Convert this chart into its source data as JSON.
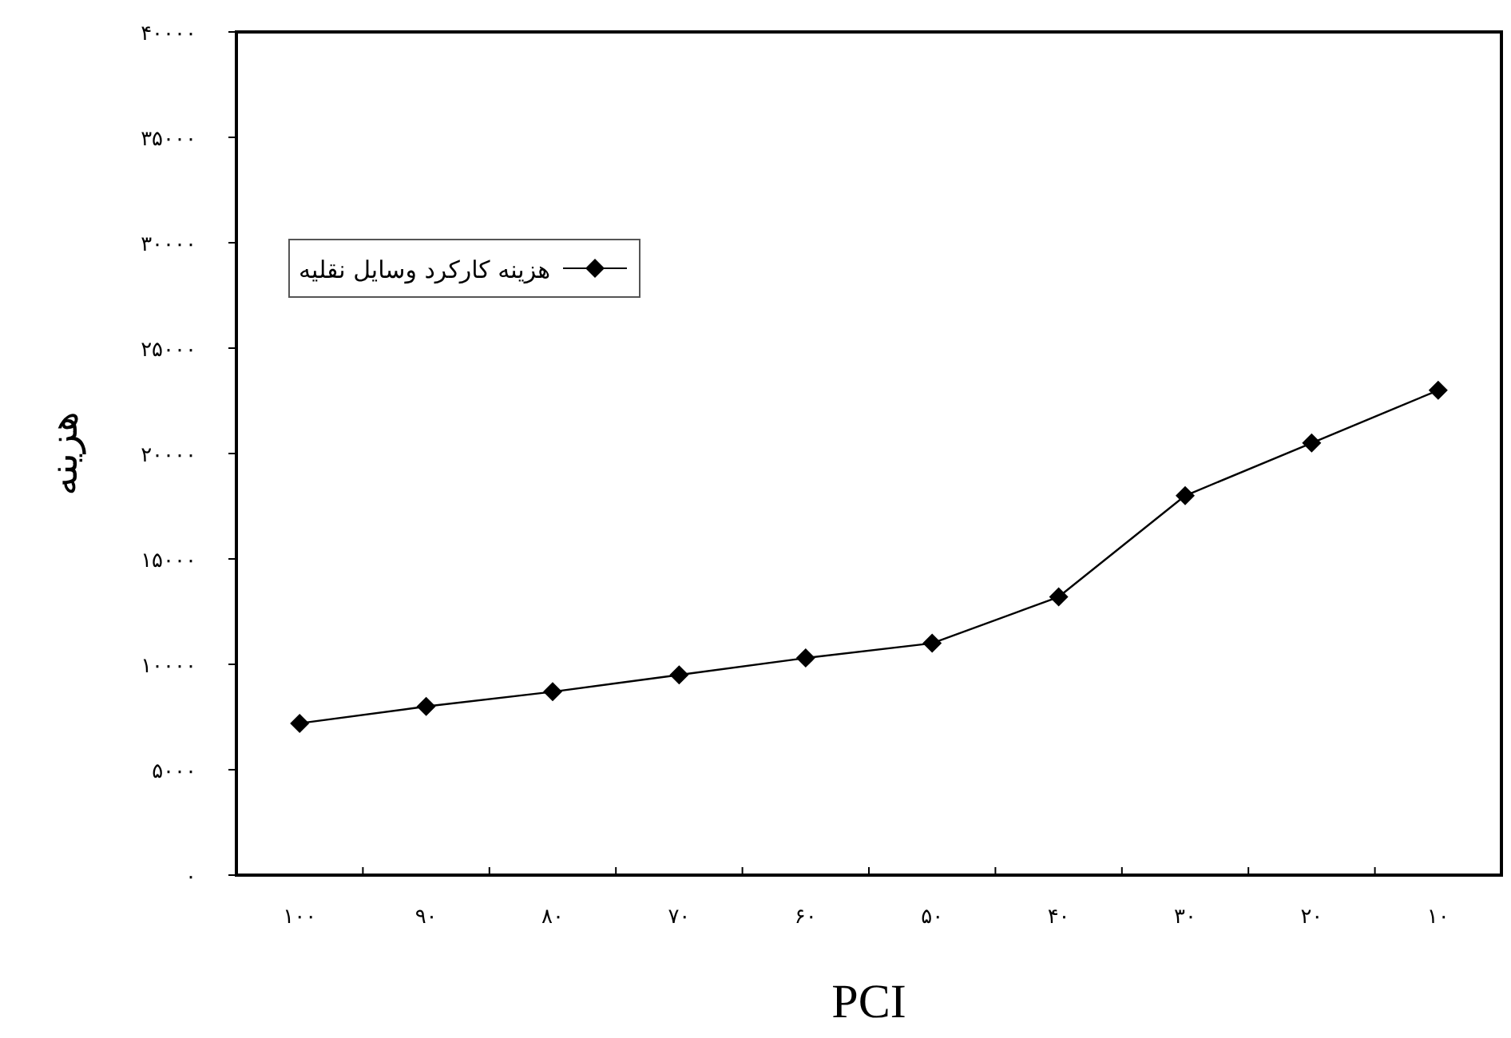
{
  "chart_data": {
    "type": "line",
    "xlabel": "PCI",
    "ylabel": "هزینه",
    "categories": [
      "۱۰۰",
      "۹۰",
      "۸۰",
      "۷۰",
      "۶۰",
      "۵۰",
      "۴۰",
      "۳۰",
      "۲۰",
      "۱۰"
    ],
    "series": [
      {
        "name": "هزینه کارکرد وسایل نقلیه",
        "color": "#000000",
        "values": [
          7200,
          8000,
          8700,
          9500,
          10300,
          11000,
          13200,
          18000,
          20500,
          23000
        ]
      }
    ],
    "ylim": [
      0,
      40000
    ],
    "yticks": [
      {
        "value": 0,
        "label": "۰"
      },
      {
        "value": 5000,
        "label": "۵۰۰۰"
      },
      {
        "value": 10000,
        "label": "۱۰۰۰۰"
      },
      {
        "value": 15000,
        "label": "۱۵۰۰۰"
      },
      {
        "value": 20000,
        "label": "۲۰۰۰۰"
      },
      {
        "value": 25000,
        "label": "۲۵۰۰۰"
      },
      {
        "value": 30000,
        "label": "۳۰۰۰۰"
      },
      {
        "value": 35000,
        "label": "۳۵۰۰۰"
      },
      {
        "value": 40000,
        "label": "۴۰۰۰۰"
      }
    ],
    "marker": "diamond",
    "line_style": "solid",
    "legend": "top left",
    "grid": false
  }
}
